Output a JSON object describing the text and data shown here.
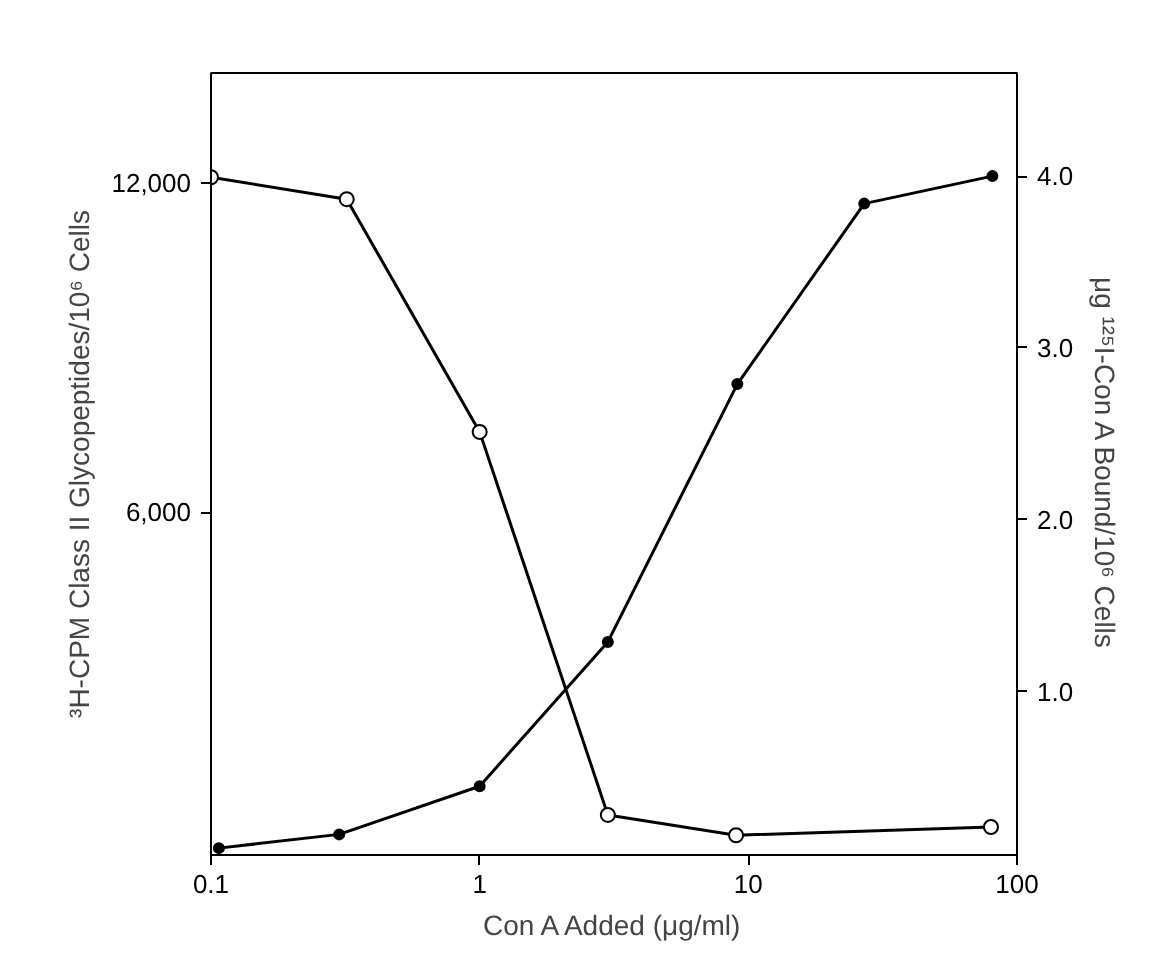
{
  "chart_data": {
    "type": "line",
    "xlabel": "Con A Added (μg/ml)",
    "ylabel": "³H-CPM Class II Glycopeptides/10⁶ Cells",
    "y2label": "μg ¹²⁵I-Con A Bound/10⁶ Cells",
    "log": "x",
    "marker": "circle",
    "line_style": "solid",
    "grid": false,
    "xlim": [
      0.1,
      100
    ],
    "xticks": [
      {
        "value": 0.1,
        "label": "0.1"
      },
      1,
      10,
      100
    ],
    "ylim": [
      -250,
      14000
    ],
    "yticks": [
      {
        "value": 6000,
        "label": "6,000"
      },
      {
        "value": 12000,
        "label": "12,000"
      }
    ],
    "y2lim": [
      0.05,
      4.6
    ],
    "y2ticks": [
      {
        "value": 1,
        "label": "1.0"
      },
      {
        "value": 2,
        "label": "2.0"
      },
      {
        "value": 3,
        "label": "3.0"
      },
      {
        "value": 4,
        "label": "4.0"
      }
    ],
    "series": [
      {
        "color": "#000000",
        "x": [
          0.1,
          0.32,
          1.0,
          3.0,
          9.0,
          80
        ],
        "values": [
          12100,
          11700,
          7460,
          480,
          110,
          260
        ]
      },
      {
        "color": "#000000",
        "axis": "y2",
        "x": [
          0.107,
          0.3,
          1.0,
          3.0,
          9.1,
          27,
          81
        ],
        "values": [
          0.09,
          0.17,
          0.45,
          1.29,
          2.79,
          3.84,
          4.0
        ]
      }
    ]
  }
}
